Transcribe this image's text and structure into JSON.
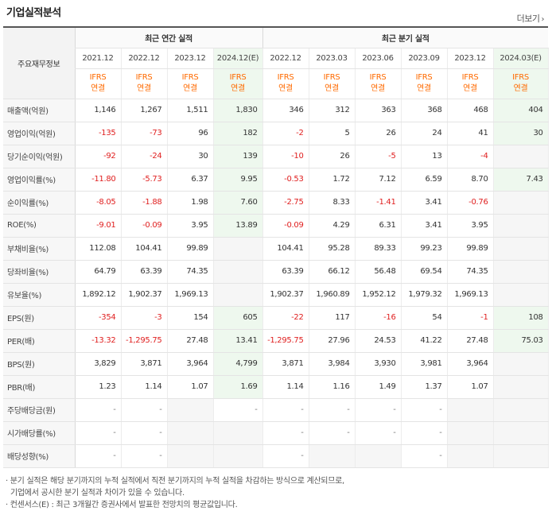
{
  "title": "기업실적분석",
  "more_label": "더보기",
  "header": {
    "row_title": "주요재무정보",
    "annual_group": "최근 연간 실적",
    "quarter_group": "최근 분기 실적",
    "annual_periods": [
      "2021.12",
      "2022.12",
      "2023.12",
      "2024.12(E)"
    ],
    "quarter_periods": [
      "2022.12",
      "2023.03",
      "2023.06",
      "2023.09",
      "2023.12",
      "2024.03(E)"
    ],
    "ifrs_top": "IFRS",
    "ifrs_bottom": "연결"
  },
  "rows": [
    {
      "label": "매출액(억원)",
      "annual": [
        "1,146",
        "1,267",
        "1,511",
        "1,830"
      ],
      "quarter": [
        "346",
        "312",
        "363",
        "368",
        "468",
        "404"
      ]
    },
    {
      "label": "영업이익(억원)",
      "annual": [
        "-135",
        "-73",
        "96",
        "182"
      ],
      "quarter": [
        "-2",
        "5",
        "26",
        "24",
        "41",
        "30"
      ]
    },
    {
      "label": "당기순이익(억원)",
      "annual": [
        "-92",
        "-24",
        "30",
        "139"
      ],
      "quarter": [
        "-10",
        "26",
        "-5",
        "13",
        "-4",
        ""
      ]
    },
    {
      "label": "영업이익률(%)",
      "annual": [
        "-11.80",
        "-5.73",
        "6.37",
        "9.95"
      ],
      "quarter": [
        "-0.53",
        "1.72",
        "7.12",
        "6.59",
        "8.70",
        "7.43"
      ]
    },
    {
      "label": "순이익률(%)",
      "annual": [
        "-8.05",
        "-1.88",
        "1.98",
        "7.60"
      ],
      "quarter": [
        "-2.75",
        "8.33",
        "-1.41",
        "3.41",
        "-0.76",
        ""
      ]
    },
    {
      "label": "ROE(%)",
      "annual": [
        "-9.01",
        "-0.09",
        "3.95",
        "13.89"
      ],
      "quarter": [
        "-0.09",
        "4.29",
        "6.31",
        "3.41",
        "3.95",
        ""
      ]
    },
    {
      "label": "부채비율(%)",
      "annual": [
        "112.08",
        "104.41",
        "99.89",
        ""
      ],
      "quarter": [
        "104.41",
        "95.28",
        "89.33",
        "99.23",
        "99.89",
        ""
      ]
    },
    {
      "label": "당좌비율(%)",
      "annual": [
        "64.79",
        "63.39",
        "74.35",
        ""
      ],
      "quarter": [
        "63.39",
        "66.12",
        "56.48",
        "69.54",
        "74.35",
        ""
      ]
    },
    {
      "label": "유보율(%)",
      "annual": [
        "1,892.12",
        "1,902.37",
        "1,969.13",
        ""
      ],
      "quarter": [
        "1,902.37",
        "1,960.89",
        "1,952.12",
        "1,979.32",
        "1,969.13",
        ""
      ]
    },
    {
      "label": "EPS(원)",
      "annual": [
        "-354",
        "-3",
        "154",
        "605"
      ],
      "quarter": [
        "-22",
        "117",
        "-16",
        "54",
        "-1",
        "108"
      ]
    },
    {
      "label": "PER(배)",
      "annual": [
        "-13.32",
        "-1,295.75",
        "27.48",
        "13.41"
      ],
      "quarter": [
        "-1,295.75",
        "27.96",
        "24.53",
        "41.22",
        "27.48",
        "75.03"
      ]
    },
    {
      "label": "BPS(원)",
      "annual": [
        "3,829",
        "3,871",
        "3,964",
        "4,799"
      ],
      "quarter": [
        "3,871",
        "3,984",
        "3,930",
        "3,981",
        "3,964",
        ""
      ]
    },
    {
      "label": "PBR(배)",
      "annual": [
        "1.23",
        "1.14",
        "1.07",
        "1.69"
      ],
      "quarter": [
        "1.14",
        "1.16",
        "1.49",
        "1.37",
        "1.07",
        ""
      ]
    },
    {
      "label": "주당배당금(원)",
      "annual": [
        "-",
        "-",
        "",
        "-"
      ],
      "quarter": [
        "-",
        "-",
        "-",
        "-",
        "",
        ""
      ]
    },
    {
      "label": "시가배당률(%)",
      "annual": [
        "-",
        "-",
        "",
        ""
      ],
      "quarter": [
        "-",
        "-",
        "-",
        "-",
        "",
        ""
      ]
    },
    {
      "label": "배당성향(%)",
      "annual": [
        "-",
        "-",
        "",
        ""
      ],
      "quarter": [
        "-",
        "",
        "",
        "-",
        "",
        ""
      ]
    }
  ],
  "notes": [
    "분기 실적은 해당 분기까지의 누적 실적에서 직전 분기까지의 누적 실적을 차감하는 방식으로 계산되므로,",
    "기업에서 공시한 분기 실적과 차이가 있을 수 있습니다.",
    "컨센서스(E) : 최근 3개월간 증권사에서 발표한 전망치의 평균값입니다."
  ],
  "colors": {
    "negative": "#e02020",
    "ifrs": "#ff6a00",
    "estimate_bg": "#eef8ee"
  }
}
